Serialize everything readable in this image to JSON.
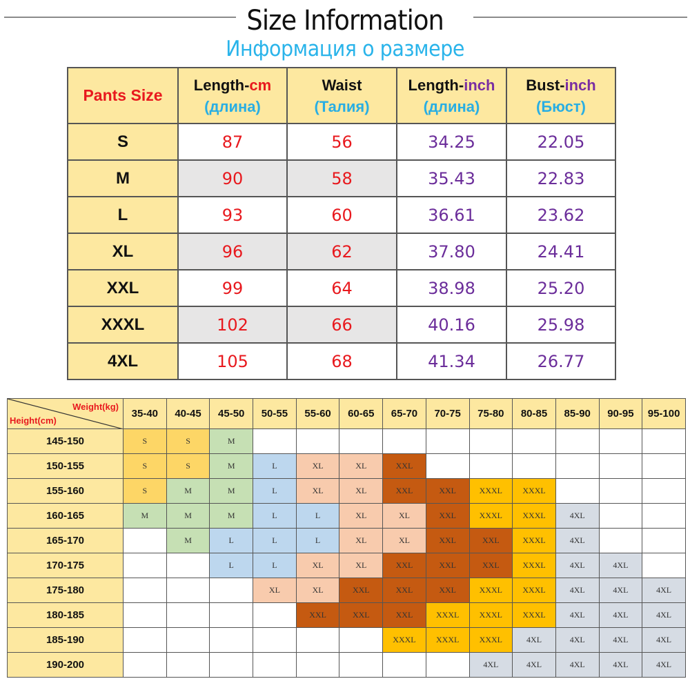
{
  "header": {
    "title": "Size Information",
    "subtitle": "Информация о размере"
  },
  "size_table": {
    "headers": [
      {
        "label": "Pants Size"
      },
      {
        "en": "Length-",
        "unit": "cm",
        "ru": "(длина)"
      },
      {
        "en": "Waist",
        "unit": "",
        "ru": "(Талия)"
      },
      {
        "en": "Length-",
        "unit": "inch",
        "ru": "(длина)"
      },
      {
        "en": "Bust-",
        "unit": "inch",
        "ru": "(Бюст)"
      }
    ],
    "rows": [
      {
        "size": "S",
        "length_cm": "87",
        "waist": "56",
        "length_inch": "34.25",
        "bust_inch": "22.05"
      },
      {
        "size": "M",
        "length_cm": "90",
        "waist": "58",
        "length_inch": "35.43",
        "bust_inch": "22.83"
      },
      {
        "size": "L",
        "length_cm": "93",
        "waist": "60",
        "length_inch": "36.61",
        "bust_inch": "23.62"
      },
      {
        "size": "XL",
        "length_cm": "96",
        "waist": "62",
        "length_inch": "37.80",
        "bust_inch": "24.41"
      },
      {
        "size": "XXL",
        "length_cm": "99",
        "waist": "64",
        "length_inch": "38.98",
        "bust_inch": "25.20"
      },
      {
        "size": "XXXL",
        "length_cm": "102",
        "waist": "66",
        "length_inch": "40.16",
        "bust_inch": "25.98"
      },
      {
        "size": "4XL",
        "length_cm": "105",
        "waist": "68",
        "length_inch": "41.34",
        "bust_inch": "26.77"
      }
    ]
  },
  "fit_grid": {
    "corner": {
      "weight_label": "Weight(kg)",
      "height_label": "Height(cm)"
    },
    "weights": [
      "35-40",
      "40-45",
      "45-50",
      "50-55",
      "55-60",
      "60-65",
      "65-70",
      "70-75",
      "75-80",
      "80-85",
      "85-90",
      "90-95",
      "95-100"
    ],
    "rows": [
      {
        "height": "145-150",
        "cells": [
          "S",
          "S",
          "M",
          "",
          "",
          "",
          "",
          "",
          "",
          "",
          "",
          "",
          ""
        ]
      },
      {
        "height": "150-155",
        "cells": [
          "S",
          "S",
          "M",
          "L",
          "XL",
          "XL",
          "XXL",
          "",
          "",
          "",
          "",
          "",
          ""
        ]
      },
      {
        "height": "155-160",
        "cells": [
          "S",
          "M",
          "M",
          "L",
          "XL",
          "XL",
          "XXL",
          "XXL",
          "XXXL",
          "XXXL",
          "",
          "",
          ""
        ]
      },
      {
        "height": "160-165",
        "cells": [
          "M",
          "M",
          "M",
          "L",
          "L",
          "XL",
          "XL",
          "XXL",
          "XXXL",
          "XXXL",
          "4XL",
          "",
          ""
        ]
      },
      {
        "height": "165-170",
        "cells": [
          "",
          "M",
          "L",
          "L",
          "L",
          "XL",
          "XL",
          "XXL",
          "XXL",
          "XXXL",
          "4XL",
          "",
          ""
        ]
      },
      {
        "height": "170-175",
        "cells": [
          "",
          "",
          "L",
          "L",
          "XL",
          "XL",
          "XXL",
          "XXL",
          "XXL",
          "XXXL",
          "4XL",
          "4XL",
          ""
        ]
      },
      {
        "height": "175-180",
        "cells": [
          "",
          "",
          "",
          "XL",
          "XL",
          "XXL",
          "XXL",
          "XXL",
          "XXXL",
          "XXXL",
          "4XL",
          "4XL",
          "4XL"
        ]
      },
      {
        "height": "180-185",
        "cells": [
          "",
          "",
          "",
          "",
          "XXL",
          "XXL",
          "XXL",
          "XXXL",
          "XXXL",
          "XXXL",
          "4XL",
          "4XL",
          "4XL"
        ]
      },
      {
        "height": "185-190",
        "cells": [
          "",
          "",
          "",
          "",
          "",
          "",
          "XXXL",
          "XXXL",
          "XXXL",
          "4XL",
          "4XL",
          "4XL",
          "4XL"
        ]
      },
      {
        "height": "190-200",
        "cells": [
          "",
          "",
          "",
          "",
          "",
          "",
          "",
          "",
          "4XL",
          "4XL",
          "4XL",
          "4XL",
          "4XL"
        ]
      }
    ]
  },
  "colors": {
    "header_fill": "#fde8a0",
    "red_text": "#e8191e",
    "purple_text": "#6b2d9a",
    "cyan_text": "#29aee3",
    "S": "#fdd666",
    "M": "#c6e0b4",
    "L": "#bdd7ee",
    "XL": "#f8cbad",
    "XXL": "#c55a11",
    "XXXL": "#ffc000",
    "4XL": "#d6dce4"
  },
  "chart_data": [
    {
      "type": "table",
      "title": "Size Information",
      "subtitle": "Информация о размере",
      "columns": [
        "Pants Size",
        "Length-cm (длина)",
        "Waist (Талия)",
        "Length-inch (длина)",
        "Bust-inch (Бюст)"
      ],
      "rows": [
        [
          "S",
          87,
          56,
          34.25,
          22.05
        ],
        [
          "M",
          90,
          58,
          35.43,
          22.83
        ],
        [
          "L",
          93,
          60,
          36.61,
          23.62
        ],
        [
          "XL",
          96,
          62,
          37.8,
          24.41
        ],
        [
          "XXL",
          99,
          64,
          38.98,
          25.2
        ],
        [
          "XXXL",
          102,
          66,
          40.16,
          25.98
        ],
        [
          "4XL",
          105,
          68,
          41.34,
          26.77
        ]
      ]
    },
    {
      "type": "heatmap",
      "title": "Height/Weight size recommendation",
      "xlabel": "Weight(kg)",
      "ylabel": "Height(cm)",
      "x": [
        "35-40",
        "40-45",
        "45-50",
        "50-55",
        "55-60",
        "60-65",
        "65-70",
        "70-75",
        "75-80",
        "80-85",
        "85-90",
        "90-95",
        "95-100"
      ],
      "y": [
        "145-150",
        "150-155",
        "155-160",
        "160-165",
        "165-170",
        "170-175",
        "175-180",
        "180-185",
        "185-190",
        "190-200"
      ],
      "values": [
        [
          "S",
          "S",
          "M",
          "",
          "",
          "",
          "",
          "",
          "",
          "",
          "",
          "",
          ""
        ],
        [
          "S",
          "S",
          "M",
          "L",
          "XL",
          "XL",
          "XXL",
          "",
          "",
          "",
          "",
          "",
          ""
        ],
        [
          "S",
          "M",
          "M",
          "L",
          "XL",
          "XL",
          "XXL",
          "XXL",
          "XXXL",
          "XXXL",
          "",
          "",
          ""
        ],
        [
          "M",
          "M",
          "M",
          "L",
          "L",
          "XL",
          "XL",
          "XXL",
          "XXXL",
          "XXXL",
          "4XL",
          "",
          ""
        ],
        [
          "",
          "M",
          "L",
          "L",
          "L",
          "XL",
          "XL",
          "XXL",
          "XXL",
          "XXXL",
          "4XL",
          "",
          ""
        ],
        [
          "",
          "",
          "L",
          "L",
          "XL",
          "XL",
          "XXL",
          "XXL",
          "XXL",
          "XXXL",
          "4XL",
          "4XL",
          ""
        ],
        [
          "",
          "",
          "",
          "XL",
          "XL",
          "XXL",
          "XXL",
          "XXL",
          "XXXL",
          "XXXL",
          "4XL",
          "4XL",
          "4XL"
        ],
        [
          "",
          "",
          "",
          "",
          "XXL",
          "XXL",
          "XXL",
          "XXXL",
          "XXXL",
          "XXXL",
          "4XL",
          "4XL",
          "4XL"
        ],
        [
          "",
          "",
          "",
          "",
          "",
          "",
          "XXXL",
          "XXXL",
          "XXXL",
          "4XL",
          "4XL",
          "4XL",
          "4XL"
        ],
        [
          "",
          "",
          "",
          "",
          "",
          "",
          "",
          "",
          "4XL",
          "4XL",
          "4XL",
          "4XL",
          "4XL"
        ]
      ]
    }
  ]
}
